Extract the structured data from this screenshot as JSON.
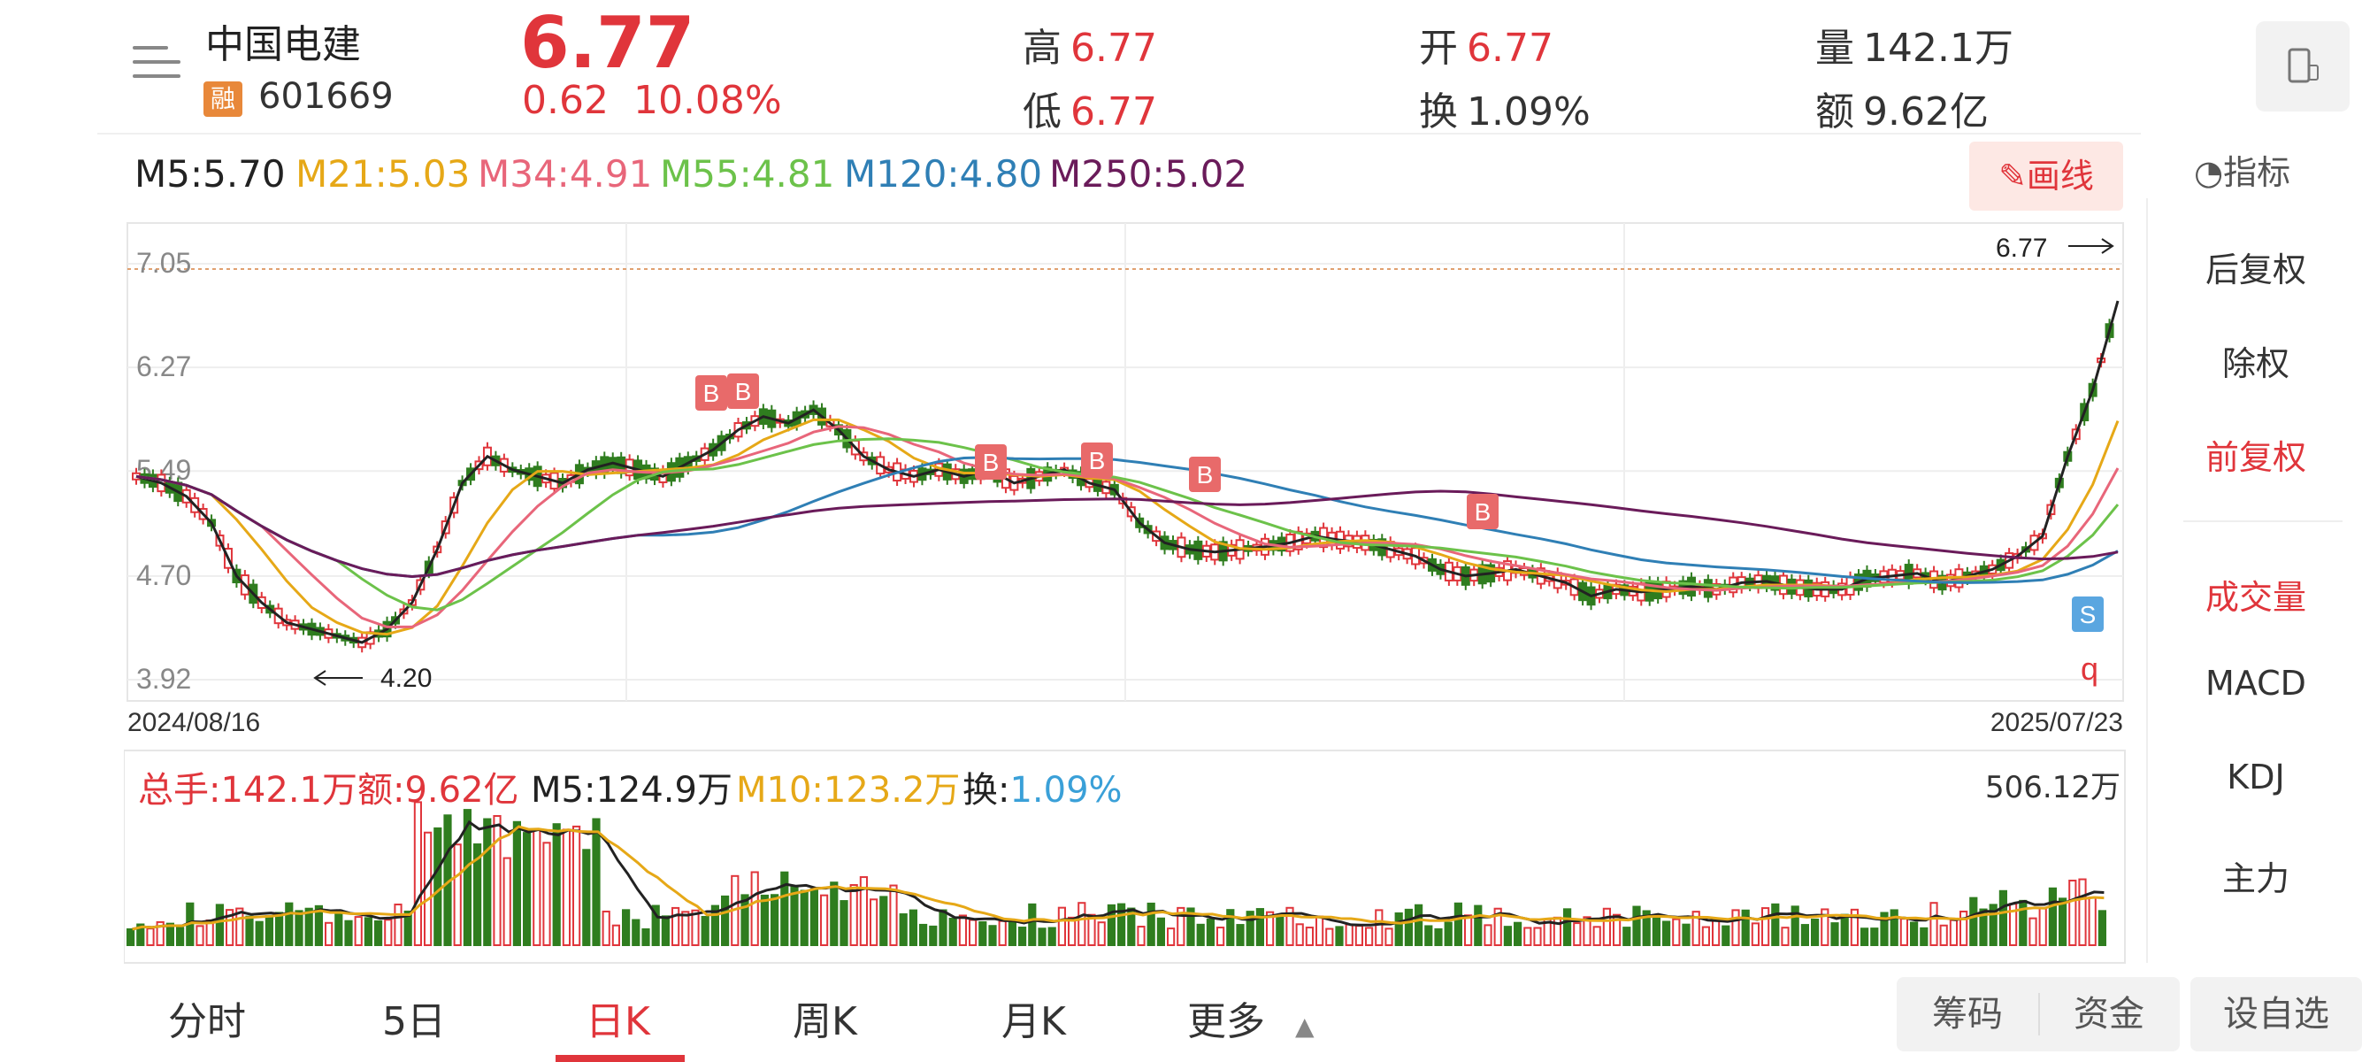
{
  "header": {
    "name": "中国电建",
    "badge": "融",
    "code": "601669",
    "price": "6.77",
    "change": "0.62",
    "change_pct": "10.08%",
    "high_label": "高",
    "high": "6.77",
    "low_label": "低",
    "low": "6.77",
    "open_label": "开",
    "open": "6.77",
    "turnover_label": "换",
    "turnover": "1.09%",
    "volume_label": "量",
    "volume": "142.1万",
    "amount_label": "额",
    "amount": "9.62亿"
  },
  "ma_legend": [
    {
      "text": "M5:5.70",
      "color": "#222222"
    },
    {
      "text": "M21:5.03",
      "color": "#e6a817"
    },
    {
      "text": "M34:4.91",
      "color": "#e8667a"
    },
    {
      "text": "M55:4.81",
      "color": "#6cc24a"
    },
    {
      "text": "M120:4.80",
      "color": "#2f7fb5"
    },
    {
      "text": "M250:5.02",
      "color": "#6a1b5a"
    }
  ],
  "draw_button": "画线",
  "right_panel": {
    "title": "指标",
    "items": [
      "后复权",
      "除权",
      "前复权",
      "成交量",
      "MACD",
      "KDJ",
      "主力"
    ]
  },
  "volume_info": {
    "total": "总手:142.1万",
    "amount": "额:9.62亿",
    "m5": "M5:124.9万",
    "m10": "M10:123.2万",
    "turnover_label": "换:",
    "turnover": "1.09%",
    "max": "506.12万"
  },
  "tabs": [
    "分时",
    "5日",
    "日K",
    "周K",
    "月K",
    "更多"
  ],
  "bottom_buttons": {
    "chips": "筹码",
    "funds": "资金",
    "watchlist": "设自选"
  },
  "colors": {
    "up": "#e0353b",
    "down": "#2f7d1f",
    "accent": "#e0353b"
  },
  "chart_data": {
    "type": "candlestick",
    "x_start": "2024/08/16",
    "x_end": "2025/07/23",
    "y_ticks": [
      "7.05",
      "6.27",
      "5.49",
      "4.70",
      "3.92"
    ],
    "ylim": [
      3.92,
      7.05
    ],
    "high_marker": "6.77",
    "low_marker": "4.20",
    "close_path": [
      5.45,
      5.4,
      5.3,
      5.1,
      4.7,
      4.5,
      4.35,
      4.3,
      4.25,
      4.2,
      4.3,
      4.5,
      4.9,
      5.4,
      5.6,
      5.5,
      5.45,
      5.4,
      5.5,
      5.55,
      5.5,
      5.45,
      5.55,
      5.65,
      5.8,
      5.9,
      5.85,
      5.95,
      5.8,
      5.6,
      5.5,
      5.45,
      5.5,
      5.45,
      5.5,
      5.4,
      5.45,
      5.5,
      5.4,
      5.35,
      5.1,
      4.95,
      4.9,
      4.88,
      4.9,
      4.92,
      4.95,
      5.0,
      4.97,
      4.95,
      4.9,
      4.85,
      4.75,
      4.7,
      4.72,
      4.75,
      4.7,
      4.65,
      4.55,
      4.6,
      4.58,
      4.6,
      4.62,
      4.6,
      4.65,
      4.66,
      4.62,
      4.6,
      4.6,
      4.68,
      4.7,
      4.72,
      4.65,
      4.7,
      4.75,
      4.85,
      5.0,
      5.6,
      6.1,
      6.77
    ],
    "markers": [
      {
        "label": "B",
        "type": "buy"
      },
      {
        "label": "B",
        "type": "buy"
      },
      {
        "label": "B",
        "type": "buy"
      },
      {
        "label": "B",
        "type": "buy"
      },
      {
        "label": "B",
        "type": "buy"
      },
      {
        "label": "B",
        "type": "buy"
      },
      {
        "label": "S",
        "type": "sell"
      }
    ],
    "volume_max": "506.12万"
  }
}
